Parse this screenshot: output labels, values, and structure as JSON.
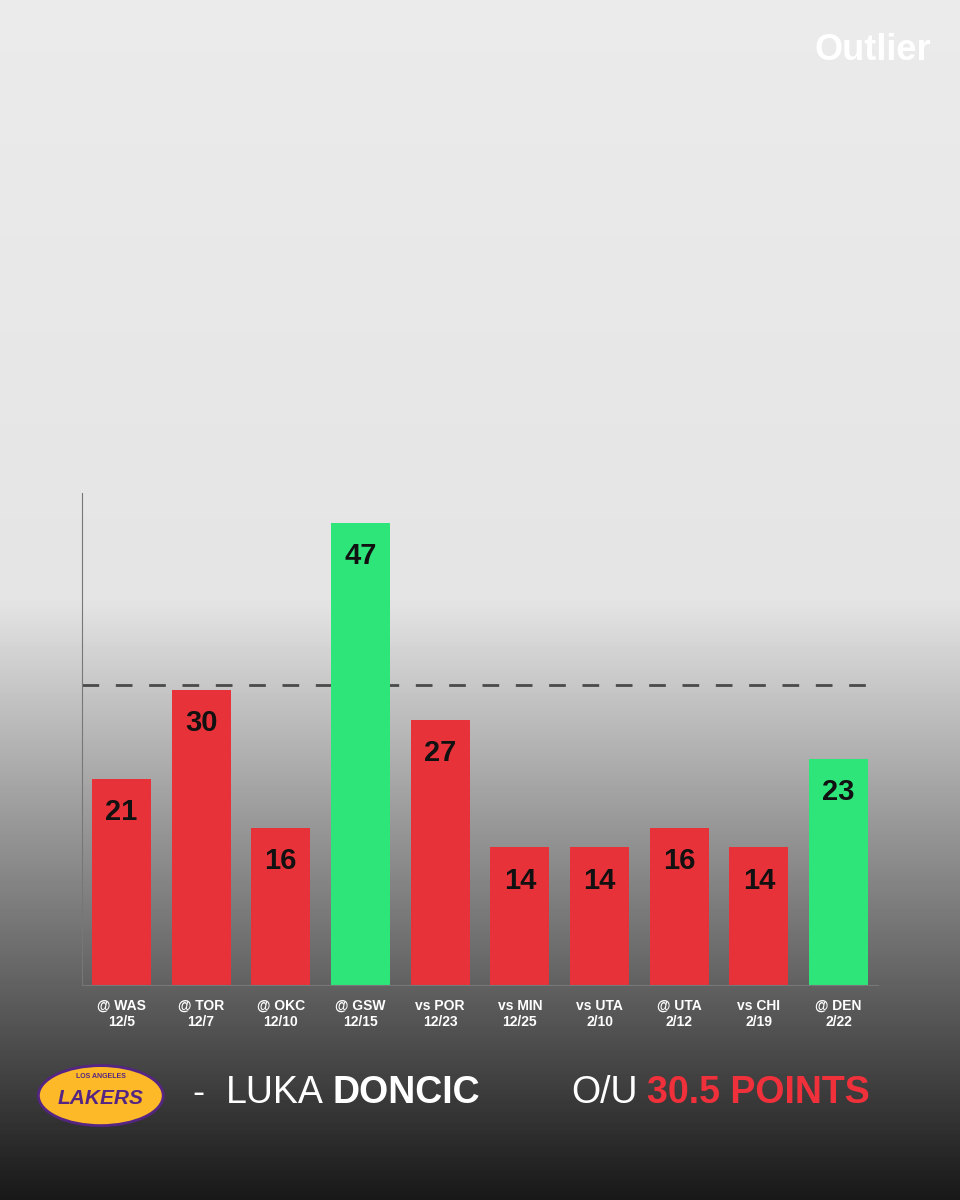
{
  "chart_data": {
    "type": "bar",
    "brand": "Outlier",
    "player": "LUKA DONCIC",
    "separator": "-",
    "team_city": "LOS ANGELES",
    "team": "LAKERS",
    "line_label": "O/U 30.5 POINTS",
    "threshold": 30.5,
    "categories": [
      "@ WAS\n12/5",
      "@ TOR\n12/7",
      "@ OKC\n12/10",
      "@ GSW\n12/15",
      "vs POR\n12/23",
      "vs MIN\n12/25",
      "vs UTA\n2/10",
      "@ UTA\n2/12",
      "vs CHI\n2/19",
      "@ DEN\n2/22"
    ],
    "values": [
      21,
      30,
      16,
      47,
      27,
      14,
      14,
      16,
      14,
      23
    ],
    "colors": [
      "#e8323a",
      "#e8323a",
      "#e8323a",
      "#2ee57a",
      "#e8323a",
      "#e8323a",
      "#e8323a",
      "#e8323a",
      "#e8323a",
      "#2ee57a"
    ],
    "ylim": [
      0,
      50
    ],
    "yticks": [],
    "grid": false,
    "data_labels": true,
    "tick_labels": "x"
  }
}
